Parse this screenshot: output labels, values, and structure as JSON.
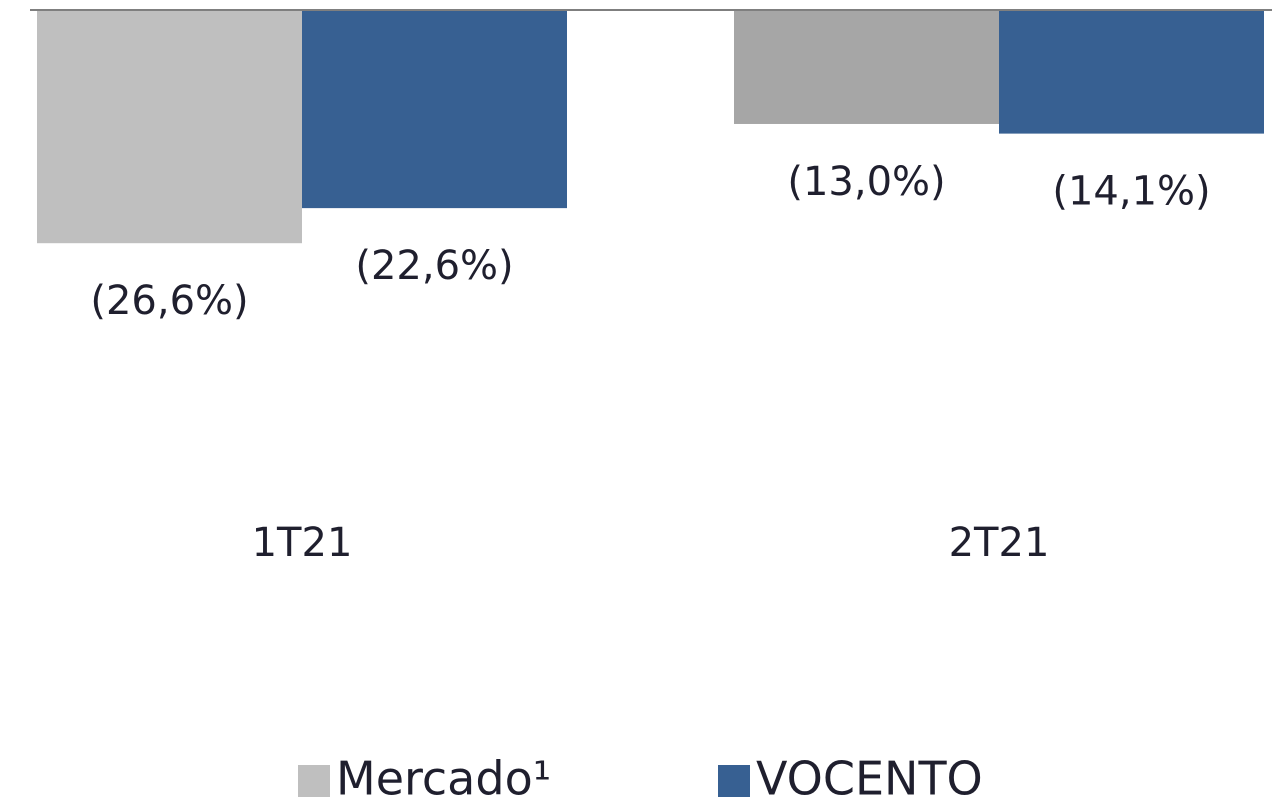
{
  "chart_data": {
    "type": "bar",
    "categories": [
      "1T21",
      "2T21"
    ],
    "series": [
      {
        "name": "Mercado¹",
        "color": "#bfbfbf",
        "colors": [
          "#bfbfbf",
          "#a6a6a6"
        ],
        "values": [
          -26.6,
          -13.0
        ],
        "value_labels": [
          "(26,6%)",
          "(13,0%)"
        ]
      },
      {
        "name": "VOCENTO",
        "color": "#376092",
        "values": [
          -22.6,
          -14.1
        ],
        "value_labels": [
          "(22,6%)",
          "(14,1%)"
        ]
      }
    ],
    "ylim": [
      -60,
      0
    ],
    "legend": "bottom"
  }
}
